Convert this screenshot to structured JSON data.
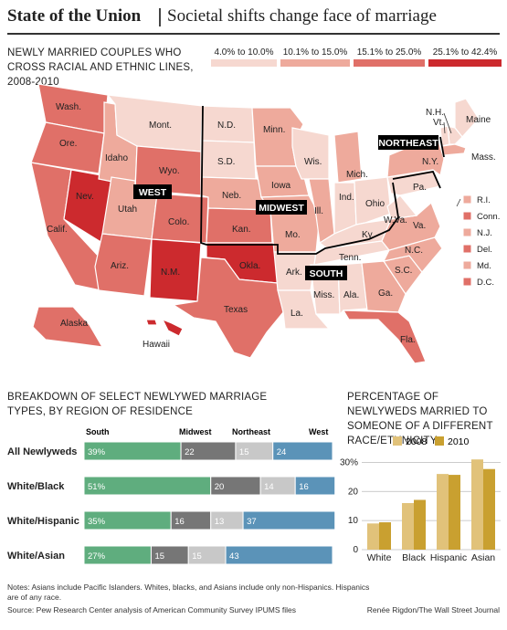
{
  "header": {
    "title": "State of the Union",
    "subtitle": "Societal shifts change face of marriage"
  },
  "map": {
    "title": "NEWLY MARRIED COUPLES WHO CROSS RACIAL AND ETHNIC LINES, 2008-2010",
    "legend": [
      {
        "label": "4.0% to 10.0%",
        "color": "#f6d8d0"
      },
      {
        "label": "10.1% to 15.0%",
        "color": "#eeaa9c"
      },
      {
        "label": "15.1% to 25.0%",
        "color": "#e07068"
      },
      {
        "label": "25.1% to 42.4%",
        "color": "#cc2a2e"
      }
    ],
    "regions": [
      "WEST",
      "MIDWEST",
      "NORTHEAST",
      "SOUTH"
    ],
    "states": [
      {
        "abbr": "Wash.",
        "bin": 3
      },
      {
        "abbr": "Ore.",
        "bin": 3
      },
      {
        "abbr": "Calif.",
        "bin": 3
      },
      {
        "abbr": "Nev.",
        "bin": 4
      },
      {
        "abbr": "Idaho",
        "bin": 2
      },
      {
        "abbr": "Mont.",
        "bin": 1
      },
      {
        "abbr": "Wyo.",
        "bin": 3
      },
      {
        "abbr": "Utah",
        "bin": 2
      },
      {
        "abbr": "Ariz.",
        "bin": 3
      },
      {
        "abbr": "Colo.",
        "bin": 3
      },
      {
        "abbr": "N.M.",
        "bin": 4
      },
      {
        "abbr": "N.D.",
        "bin": 1
      },
      {
        "abbr": "S.D.",
        "bin": 1
      },
      {
        "abbr": "Neb.",
        "bin": 2
      },
      {
        "abbr": "Kan.",
        "bin": 3
      },
      {
        "abbr": "Okla.",
        "bin": 4
      },
      {
        "abbr": "Texas",
        "bin": 3
      },
      {
        "abbr": "Minn.",
        "bin": 2
      },
      {
        "abbr": "Iowa",
        "bin": 2
      },
      {
        "abbr": "Mo.",
        "bin": 2
      },
      {
        "abbr": "Ark.",
        "bin": 1
      },
      {
        "abbr": "La.",
        "bin": 1
      },
      {
        "abbr": "Wis.",
        "bin": 1
      },
      {
        "abbr": "Ill.",
        "bin": 2
      },
      {
        "abbr": "Mich.",
        "bin": 2
      },
      {
        "abbr": "Ind.",
        "bin": 1
      },
      {
        "abbr": "Ohio",
        "bin": 1
      },
      {
        "abbr": "Ky.",
        "bin": 1
      },
      {
        "abbr": "Tenn.",
        "bin": 1
      },
      {
        "abbr": "Miss.",
        "bin": 1
      },
      {
        "abbr": "Ala.",
        "bin": 1
      },
      {
        "abbr": "Ga.",
        "bin": 2
      },
      {
        "abbr": "Fla.",
        "bin": 3
      },
      {
        "abbr": "S.C.",
        "bin": 2
      },
      {
        "abbr": "N.C.",
        "bin": 2
      },
      {
        "abbr": "Va.",
        "bin": 2
      },
      {
        "abbr": "W.Va.",
        "bin": 1
      },
      {
        "abbr": "Pa.",
        "bin": 1
      },
      {
        "abbr": "N.Y.",
        "bin": 2
      },
      {
        "abbr": "Maine",
        "bin": 1
      },
      {
        "abbr": "N.H.",
        "bin": 1
      },
      {
        "abbr": "Vt.",
        "bin": 1
      },
      {
        "abbr": "Mass.",
        "bin": 2
      },
      {
        "abbr": "Alaska",
        "bin": 3
      },
      {
        "abbr": "Hawaii",
        "bin": 4
      }
    ],
    "small_states": [
      {
        "abbr": "R.I.",
        "bin": 2
      },
      {
        "abbr": "Conn.",
        "bin": 3
      },
      {
        "abbr": "N.J.",
        "bin": 2
      },
      {
        "abbr": "Del.",
        "bin": 3
      },
      {
        "abbr": "Md.",
        "bin": 2
      },
      {
        "abbr": "D.C.",
        "bin": 3
      }
    ]
  },
  "breakdown": {
    "title": "BREAKDOWN OF SELECT NEWLYWED MARRIAGE TYPES, BY REGION OF RESIDENCE",
    "region_headers": [
      "South",
      "Midwest",
      "Northeast",
      "West"
    ]
  },
  "percentage": {
    "title": "PERCENTAGE OF NEWLYWEDS MARRIED TO SOMEONE OF A DIFFERENT RACE/ETHNICITY",
    "legend": [
      "2008",
      "2010"
    ]
  },
  "notes": "Notes: Asians include Pacific Islanders. Whites, blacks, and Asians include only non-Hispanics. Hispanics are of any race.",
  "source": "Source: Pew Research Center analysis of American Community Survey IPUMS files",
  "credit": "Renée Rigdon/The Wall Street Journal",
  "chart_data": [
    {
      "type": "bar",
      "stacked": true,
      "orientation": "horizontal",
      "title": "BREAKDOWN OF SELECT NEWLYWED MARRIAGE TYPES, BY REGION OF RESIDENCE",
      "categories": [
        "All Newlyweds",
        "White/Black",
        "White/Hispanic",
        "White/Asian"
      ],
      "series": [
        {
          "name": "South",
          "values": [
            39,
            51,
            35,
            27
          ],
          "labels": [
            "39%",
            "51%",
            "35%",
            "27%"
          ],
          "color": "#5fad7e"
        },
        {
          "name": "Midwest",
          "values": [
            22,
            20,
            16,
            15
          ],
          "labels": [
            "22",
            "20",
            "16",
            "15"
          ],
          "color": "#767676"
        },
        {
          "name": "Northeast",
          "values": [
            15,
            14,
            13,
            15
          ],
          "labels": [
            "15",
            "14",
            "13",
            "15"
          ],
          "color": "#c8c8c8"
        },
        {
          "name": "West",
          "values": [
            24,
            16,
            37,
            43
          ],
          "labels": [
            "24",
            "16",
            "37",
            "43"
          ],
          "color": "#5b93b8"
        }
      ],
      "xlim": [
        0,
        100
      ]
    },
    {
      "type": "bar",
      "title": "PERCENTAGE OF NEWLYWEDS MARRIED TO SOMEONE OF A DIFFERENT RACE/ETHNICITY",
      "categories": [
        "White",
        "Black",
        "Hispanic",
        "Asian"
      ],
      "series": [
        {
          "name": "2008",
          "values": [
            9,
            16,
            26,
            31
          ],
          "color": "#e1c27a"
        },
        {
          "name": "2010",
          "values": [
            9.4,
            17.1,
            25.7,
            27.7
          ],
          "color": "#c9a030"
        }
      ],
      "ylim": [
        0,
        32
      ],
      "yticks": [
        0,
        10,
        20,
        30
      ],
      "ytick_labels": [
        "0",
        "10",
        "20",
        "30%"
      ],
      "grid": true
    }
  ]
}
